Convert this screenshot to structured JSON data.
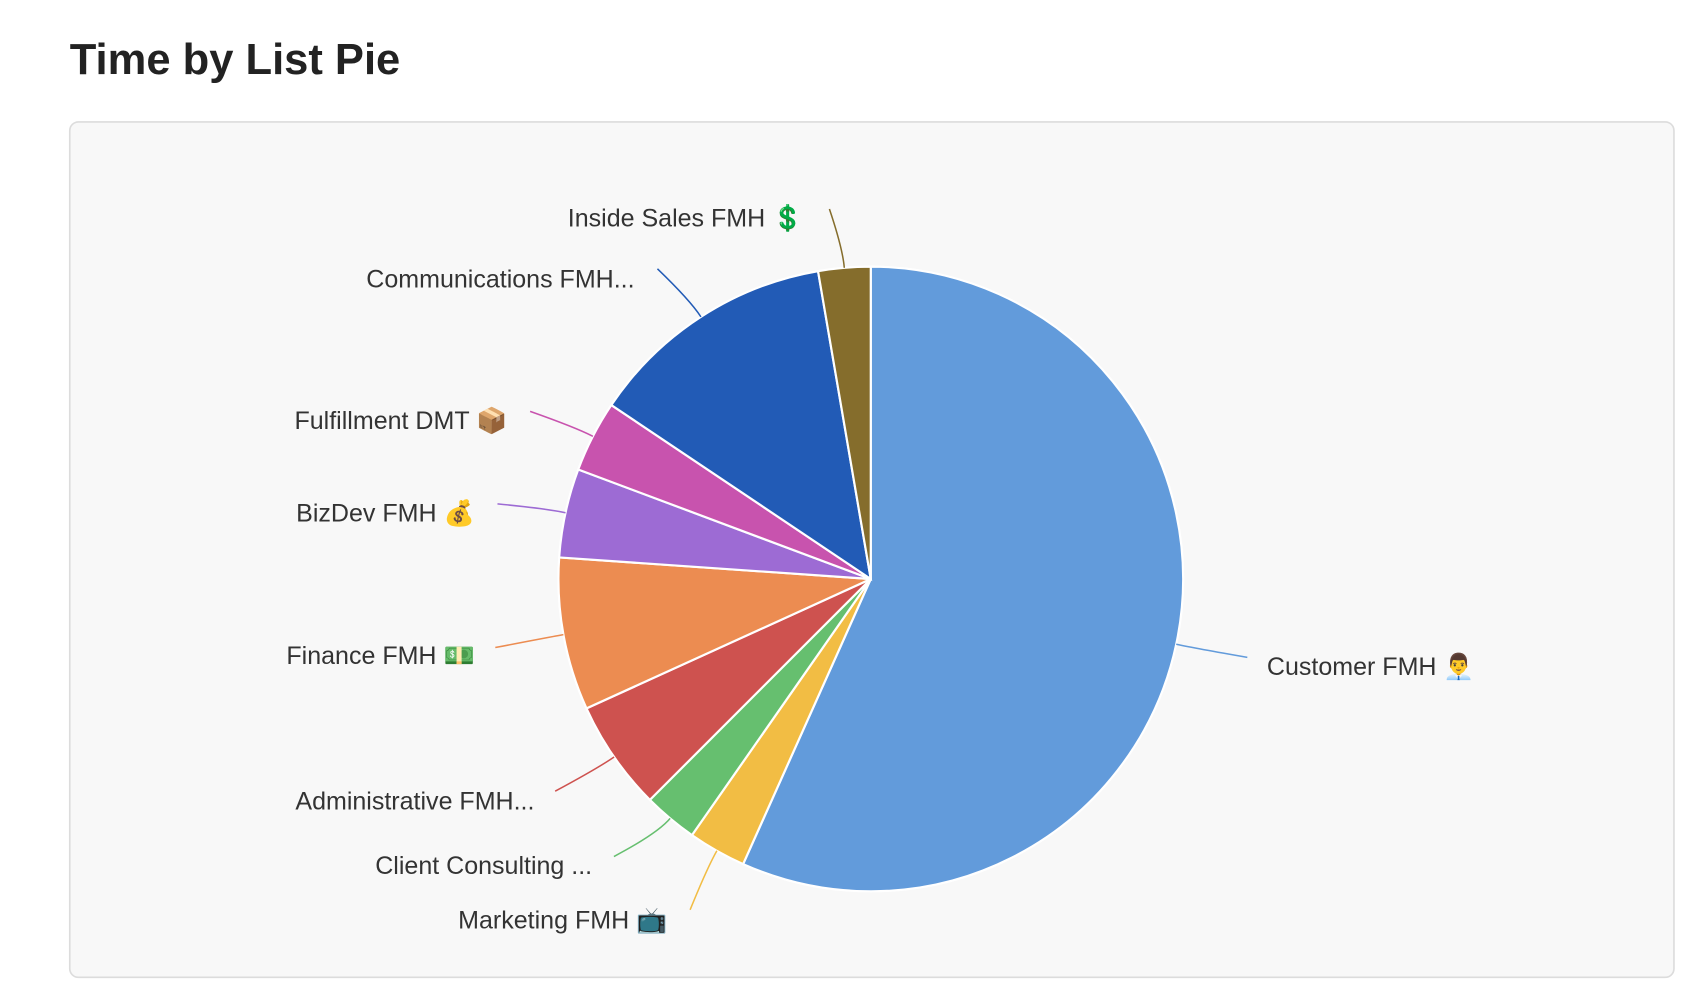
{
  "chart_data": {
    "type": "pie",
    "title": "Time by List Pie",
    "unit": "percent of total (estimated)",
    "slices": [
      {
        "label": "Customer FMH 👨‍💼",
        "value": 56.7,
        "color": "#629BDB"
      },
      {
        "label": "Marketing FMH 📺",
        "value": 3.0,
        "color": "#F2BD44"
      },
      {
        "label": "Client Consulting ...",
        "value": 2.8,
        "color": "#66BF6F"
      },
      {
        "label": "Administrative FMH...",
        "value": 5.7,
        "color": "#CE524F"
      },
      {
        "label": "Finance FMH 💵",
        "value": 7.9,
        "color": "#EC8C51"
      },
      {
        "label": "BizDev FMH 💰",
        "value": 4.6,
        "color": "#9D6BD4"
      },
      {
        "label": "Fulfillment DMT 📦",
        "value": 3.7,
        "color": "#C853AE"
      },
      {
        "label": "Communications FMH...",
        "value": 12.9,
        "color": "#225BB6"
      },
      {
        "label": "Inside Sales FMH 💲",
        "value": 2.7,
        "color": "#856D2C"
      }
    ],
    "start_angle": "top, clockwise",
    "legend": "none (leader-line labels)"
  }
}
